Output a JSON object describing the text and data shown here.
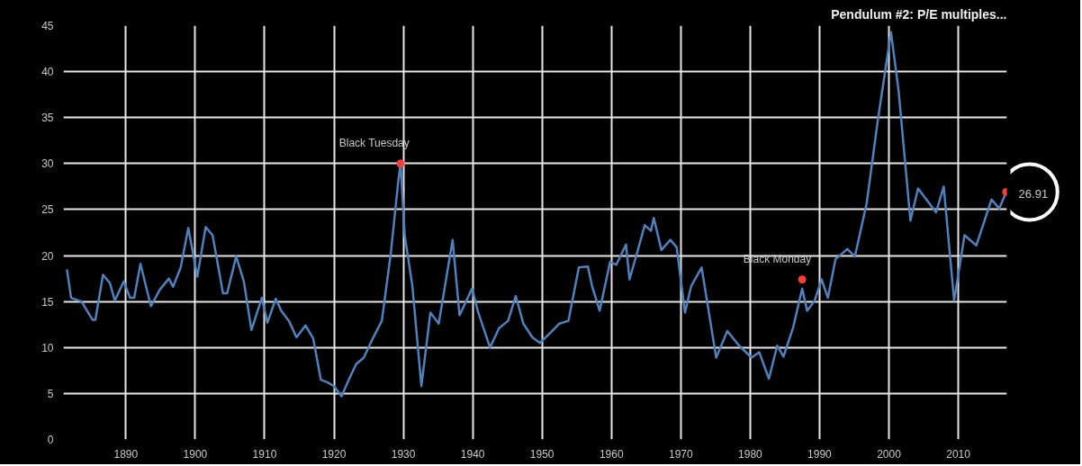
{
  "chart_data": {
    "type": "line",
    "title": "Pendulum #2: P/E multiples...",
    "xlim": [
      1881,
      2017
    ],
    "xticks": [
      1890,
      1900,
      1910,
      1920,
      1930,
      1940,
      1950,
      1960,
      1970,
      1980,
      1990,
      2000,
      2010
    ],
    "ylim": [
      0,
      45
    ],
    "yticks": [
      0,
      5,
      10,
      15,
      20,
      25,
      30,
      35,
      40,
      45
    ],
    "grid": true,
    "series": [
      {
        "color": "#4f81bd",
        "x": [
          1881.5,
          1882.1,
          1883.6,
          1885.2,
          1885.6,
          1886.7,
          1887.7,
          1888.4,
          1889.7,
          1890.6,
          1891.2,
          1892.1,
          1893.6,
          1894.9,
          1896.2,
          1896.8,
          1897.9,
          1899.0,
          1900.3,
          1901.5,
          1902.5,
          1904.0,
          1904.6,
          1905.9,
          1907.0,
          1908.1,
          1909.6,
          1910.4,
          1911.6,
          1912.4,
          1913.5,
          1914.6,
          1915.9,
          1917.0,
          1918.1,
          1919.1,
          1920.0,
          1921.1,
          1922.2,
          1923.2,
          1924.3,
          1925.6,
          1926.9,
          1928.2,
          1929.3,
          1929.6,
          1930.2,
          1931.3,
          1932.6,
          1933.9,
          1935.1,
          1937.1,
          1938.1,
          1939.9,
          1940.8,
          1942.5,
          1943.8,
          1945.1,
          1946.2,
          1947.3,
          1948.6,
          1949.7,
          1951.2,
          1952.5,
          1953.8,
          1955.3,
          1956.6,
          1957.2,
          1958.3,
          1959.8,
          1960.7,
          1962.1,
          1962.6,
          1963.7,
          1964.8,
          1965.7,
          1966.1,
          1967.2,
          1968.5,
          1969.4,
          1970.6,
          1971.5,
          1973.0,
          1975.1,
          1976.7,
          1978.4,
          1980.2,
          1981.3,
          1982.7,
          1983.9,
          1984.8,
          1986.2,
          1987.5,
          1988.2,
          1989.3,
          1990.3,
          1991.2,
          1992.3,
          1994.0,
          1995.1,
          1996.8,
          1998.4,
          2000.3,
          2001.4,
          2003.1,
          2004.2,
          2005.3,
          2006.8,
          2007.9,
          2009.4,
          2010.9,
          2012.6,
          2014.8,
          2015.9,
          2016.9
        ],
        "values": [
          18.5,
          15.4,
          15.0,
          13.0,
          13.0,
          17.9,
          17.0,
          15.1,
          17.2,
          15.4,
          15.4,
          19.1,
          14.5,
          16.3,
          17.5,
          16.6,
          18.7,
          23.0,
          17.7,
          23.1,
          22.2,
          15.9,
          15.9,
          19.9,
          17.2,
          11.9,
          15.4,
          12.7,
          15.3,
          14.0,
          12.9,
          11.1,
          12.4,
          11.0,
          6.5,
          6.2,
          5.8,
          4.7,
          6.6,
          8.2,
          8.9,
          11.0,
          12.9,
          20.3,
          28.3,
          30.0,
          22.2,
          16.7,
          5.8,
          13.8,
          12.6,
          21.7,
          13.5,
          16.4,
          13.8,
          10.0,
          12.1,
          12.9,
          15.6,
          12.6,
          11.1,
          10.5,
          11.6,
          12.6,
          12.9,
          18.7,
          18.8,
          16.7,
          14.0,
          19.3,
          19.0,
          21.2,
          17.4,
          20.3,
          23.3,
          22.7,
          24.1,
          20.6,
          21.7,
          20.9,
          13.8,
          16.7,
          18.7,
          8.9,
          11.8,
          10.2,
          8.9,
          9.5,
          6.6,
          10.2,
          9.0,
          12.2,
          16.4,
          14.0,
          15.1,
          17.4,
          15.4,
          19.6,
          20.7,
          19.9,
          25.7,
          34.7,
          44.3,
          37.9,
          23.8,
          27.3,
          26.2,
          24.7,
          27.5,
          15.1,
          22.2,
          21.1,
          26.1,
          25.1,
          26.9
        ]
      },
      {
        "type": "scatter",
        "color": "#ff3b3b",
        "x": [
          1929.6,
          1987.5,
          2016.9
        ],
        "values": [
          30.0,
          17.4,
          26.91
        ],
        "value_labels": [
          null,
          null,
          "26.91"
        ]
      }
    ],
    "annotations": [
      {
        "text": "Black Tuesday",
        "x": 1929.6,
        "y": 30.0
      },
      {
        "text": "Black Monday",
        "x": 1987.5,
        "y": 17.4
      }
    ]
  }
}
